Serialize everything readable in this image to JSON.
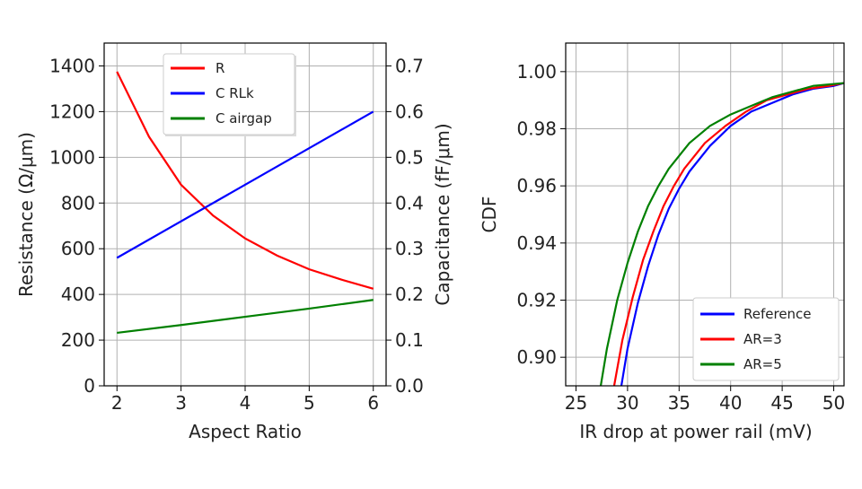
{
  "chart_data": [
    {
      "type": "line",
      "title": "",
      "xlabel": "Aspect Ratio",
      "ylabel": "Resistance (Ω/μm)",
      "y2label": "Capacitance (fF/μm)",
      "xlim": [
        1.8,
        6.2
      ],
      "ylim": [
        0,
        1500
      ],
      "y2lim": [
        0,
        0.75
      ],
      "xticks": [
        2,
        3,
        4,
        5,
        6
      ],
      "yticks": [
        0,
        200,
        400,
        600,
        800,
        1000,
        1200,
        1400
      ],
      "y2ticks": [
        "0.0",
        "0.1",
        "0.2",
        "0.3",
        "0.4",
        "0.5",
        "0.6",
        "0.7"
      ],
      "grid": true,
      "legend_position": "top-center",
      "series": [
        {
          "name": "R",
          "axis": "left",
          "color": "#ff0000",
          "x": [
            2,
            2.5,
            3,
            3.5,
            4,
            4.5,
            5,
            5.5,
            6
          ],
          "y": [
            1375,
            1090,
            880,
            745,
            645,
            570,
            510,
            465,
            425
          ]
        },
        {
          "name": "C RLk",
          "axis": "right",
          "color": "#0000ff",
          "x": [
            2,
            6
          ],
          "y": [
            0.28,
            0.6
          ]
        },
        {
          "name": "C airgap",
          "axis": "right",
          "color": "#008000",
          "x": [
            2,
            3,
            4,
            5,
            6
          ],
          "y": [
            0.116,
            0.133,
            0.151,
            0.169,
            0.188
          ]
        }
      ]
    },
    {
      "type": "line",
      "title": "",
      "xlabel": "IR drop at power rail (mV)",
      "ylabel": "CDF",
      "xlim": [
        24,
        51
      ],
      "ylim": [
        0.89,
        1.01
      ],
      "xticks": [
        25,
        30,
        35,
        40,
        45,
        50
      ],
      "yticks": [
        "0.90",
        "0.92",
        "0.94",
        "0.96",
        "0.98",
        "1.00"
      ],
      "grid": true,
      "legend_position": "lower-right",
      "series": [
        {
          "name": "Reference",
          "color": "#0000ff",
          "x": [
            29.4,
            30,
            31,
            32,
            33,
            34,
            35,
            36,
            38,
            40,
            42,
            44,
            46,
            48,
            50,
            51
          ],
          "y": [
            0.89,
            0.903,
            0.919,
            0.932,
            0.943,
            0.952,
            0.959,
            0.965,
            0.974,
            0.981,
            0.986,
            0.989,
            0.992,
            0.994,
            0.995,
            0.996
          ]
        },
        {
          "name": "AR=3",
          "color": "#ff0000",
          "x": [
            28.7,
            29.5,
            30.5,
            31.5,
            32.5,
            33.5,
            34.5,
            35.5,
            37.5,
            39.5,
            41.5,
            43.5,
            45.5,
            47.5,
            49.5,
            51
          ],
          "y": [
            0.89,
            0.906,
            0.921,
            0.934,
            0.944,
            0.953,
            0.96,
            0.966,
            0.975,
            0.981,
            0.986,
            0.99,
            0.992,
            0.994,
            0.995,
            0.996
          ]
        },
        {
          "name": "AR=5",
          "color": "#008000",
          "x": [
            27.4,
            28,
            29,
            30,
            31,
            32,
            33,
            34,
            36,
            38,
            40,
            42,
            44,
            46,
            48,
            51
          ],
          "y": [
            0.89,
            0.903,
            0.92,
            0.933,
            0.944,
            0.953,
            0.96,
            0.966,
            0.975,
            0.981,
            0.985,
            0.988,
            0.991,
            0.993,
            0.995,
            0.996
          ]
        }
      ]
    }
  ]
}
